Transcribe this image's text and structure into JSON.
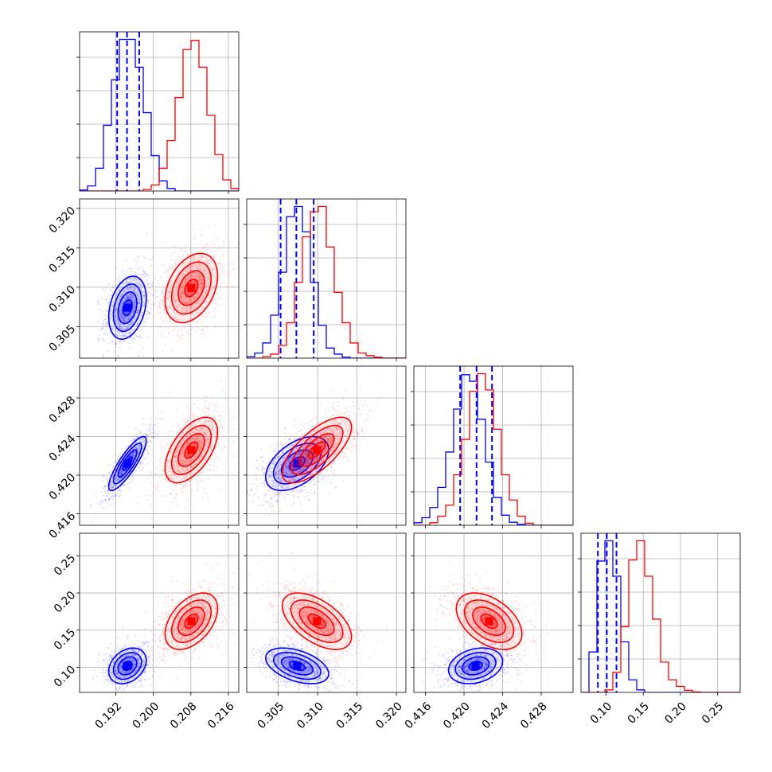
{
  "chart_data": {
    "type": "corner",
    "grid": true,
    "parameters": [
      {
        "ticks": [
          0.192,
          0.2,
          0.208,
          0.216
        ],
        "tick_labels": [
          "0.192",
          "0.200",
          "0.208",
          "0.216"
        ],
        "range": [
          0.1843,
          0.2182
        ]
      },
      {
        "ticks": [
          0.305,
          0.31,
          0.315,
          0.32
        ],
        "tick_labels": [
          "0.305",
          "0.310",
          "0.315",
          "0.320"
        ],
        "range": [
          0.301,
          0.3212
        ]
      },
      {
        "ticks": [
          0.416,
          0.42,
          0.424,
          0.428
        ],
        "tick_labels": [
          "0.416",
          "0.420",
          "0.424",
          "0.428"
        ],
        "range": [
          0.4148,
          0.4313
        ]
      },
      {
        "ticks": [
          0.1,
          0.15,
          0.2,
          0.25
        ],
        "tick_labels": [
          "0.10",
          "0.15",
          "0.20",
          "0.25"
        ],
        "range": [
          0.0663,
          0.2803
        ]
      }
    ],
    "series": [
      {
        "color": "#0000ff",
        "mean": [
          0.1945,
          0.3074,
          0.4212,
          0.102
        ],
        "sigma": [
          0.002,
          0.002,
          0.0014,
          0.012
        ],
        "correlation": [
          [
            1.0,
            0.3,
            0.85,
            0.3
          ],
          [
            0.3,
            1.0,
            0.5,
            -0.45
          ],
          [
            0.85,
            0.5,
            1.0,
            0.25
          ],
          [
            0.3,
            -0.45,
            0.25,
            1.0
          ]
        ],
        "quantiles": [
          [
            0.1923,
            0.1944,
            0.197
          ],
          [
            0.3053,
            0.3073,
            0.3095
          ],
          [
            0.4196,
            0.4213,
            0.4229
          ],
          [
            0.089,
            0.101,
            0.114
          ]
        ]
      },
      {
        "color": "#ff0000",
        "mean": [
          0.2081,
          0.3099,
          0.4226,
          0.162
        ],
        "sigma": [
          0.0028,
          0.0022,
          0.0017,
          0.019
        ],
        "correlation": [
          [
            1.0,
            0.35,
            0.55,
            0.45
          ],
          [
            0.35,
            1.0,
            0.7,
            -0.55
          ],
          [
            0.55,
            0.7,
            1.0,
            -0.45
          ],
          [
            0.45,
            -0.55,
            -0.45,
            1.0
          ]
        ]
      }
    ],
    "histograms": {
      "bins": 20,
      "counts": [
        [
          [
            2,
            10,
            45,
            130,
            220,
            300,
            300,
            245,
            155,
            70,
            20,
            5,
            0,
            0,
            0,
            0,
            0,
            0,
            0,
            0
          ],
          [
            0,
            0,
            0,
            0,
            0,
            0,
            0,
            0,
            3,
            12,
            45,
            100,
            185,
            280,
            298,
            245,
            150,
            72,
            22,
            5
          ]
        ],
        [
          [
            3,
            10,
            30,
            85,
            170,
            280,
            300,
            250,
            150,
            65,
            20,
            8,
            2,
            0,
            0,
            0,
            0,
            0,
            0,
            0
          ],
          [
            0,
            0,
            3,
            8,
            25,
            70,
            150,
            240,
            290,
            300,
            220,
            130,
            70,
            30,
            10,
            5,
            2,
            0,
            0,
            0
          ]
        ],
        [
          [
            5,
            15,
            35,
            75,
            145,
            230,
            298,
            285,
            210,
            125,
            55,
            20,
            6,
            2,
            0,
            0,
            0,
            0,
            0,
            0
          ],
          [
            0,
            0,
            5,
            18,
            40,
            100,
            170,
            265,
            300,
            268,
            190,
            100,
            50,
            18,
            4,
            0,
            0,
            0,
            0,
            0
          ]
        ],
        [
          [
            0,
            80,
            260,
            300,
            230,
            100,
            25,
            5,
            0,
            0,
            0,
            0,
            0,
            0,
            0,
            0,
            0,
            0,
            0,
            0
          ],
          [
            0,
            0,
            0,
            5,
            40,
            130,
            262,
            300,
            230,
            145,
            60,
            25,
            12,
            4,
            1,
            0,
            0,
            0,
            0,
            0
          ]
        ]
      ]
    }
  }
}
